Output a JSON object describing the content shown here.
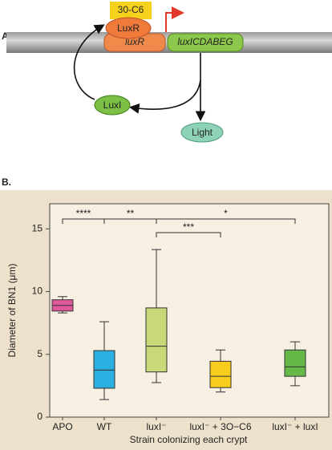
{
  "diagram": {
    "panel_label": "A.",
    "nodes": [
      {
        "label": "30-C6"
      },
      {
        "label": "LuxR"
      },
      {
        "label": "luxR"
      },
      {
        "label": "luxICDABEG"
      },
      {
        "label": "LuxI"
      },
      {
        "label": "Light"
      }
    ]
  },
  "chart_data": {
    "type": "box",
    "panel_label": "B.",
    "ylabel": "Diameter of BN1 (μm)",
    "xlabel": "Strain colonizing each crypt",
    "categories": [
      "APO",
      "WT",
      "luxI⁻",
      "luxI⁻ + 3O−C6",
      "luxI⁻ + luxI"
    ],
    "colors": [
      "#e0589a",
      "#29b0e0",
      "#c9d97a",
      "#f7cc1d",
      "#66b847"
    ],
    "boxes": [
      {
        "whislo": 8.3,
        "q1": 8.45,
        "med": 8.9,
        "q3": 9.35,
        "whishi": 9.6
      },
      {
        "whislo": 1.4,
        "q1": 2.3,
        "med": 3.75,
        "q3": 5.3,
        "whishi": 7.6
      },
      {
        "whislo": 2.75,
        "q1": 3.6,
        "med": 5.65,
        "q3": 8.7,
        "whishi": 13.35
      },
      {
        "whislo": 2.0,
        "q1": 2.35,
        "med": 3.25,
        "q3": 4.45,
        "whishi": 5.35
      },
      {
        "whislo": 2.5,
        "q1": 3.25,
        "med": 4.0,
        "q3": 5.35,
        "whishi": 6.0
      }
    ],
    "significance": [
      "****",
      "**",
      "***",
      "*"
    ],
    "ylim": [
      0,
      17
    ],
    "yticks": [
      0,
      5,
      10,
      15
    ]
  }
}
